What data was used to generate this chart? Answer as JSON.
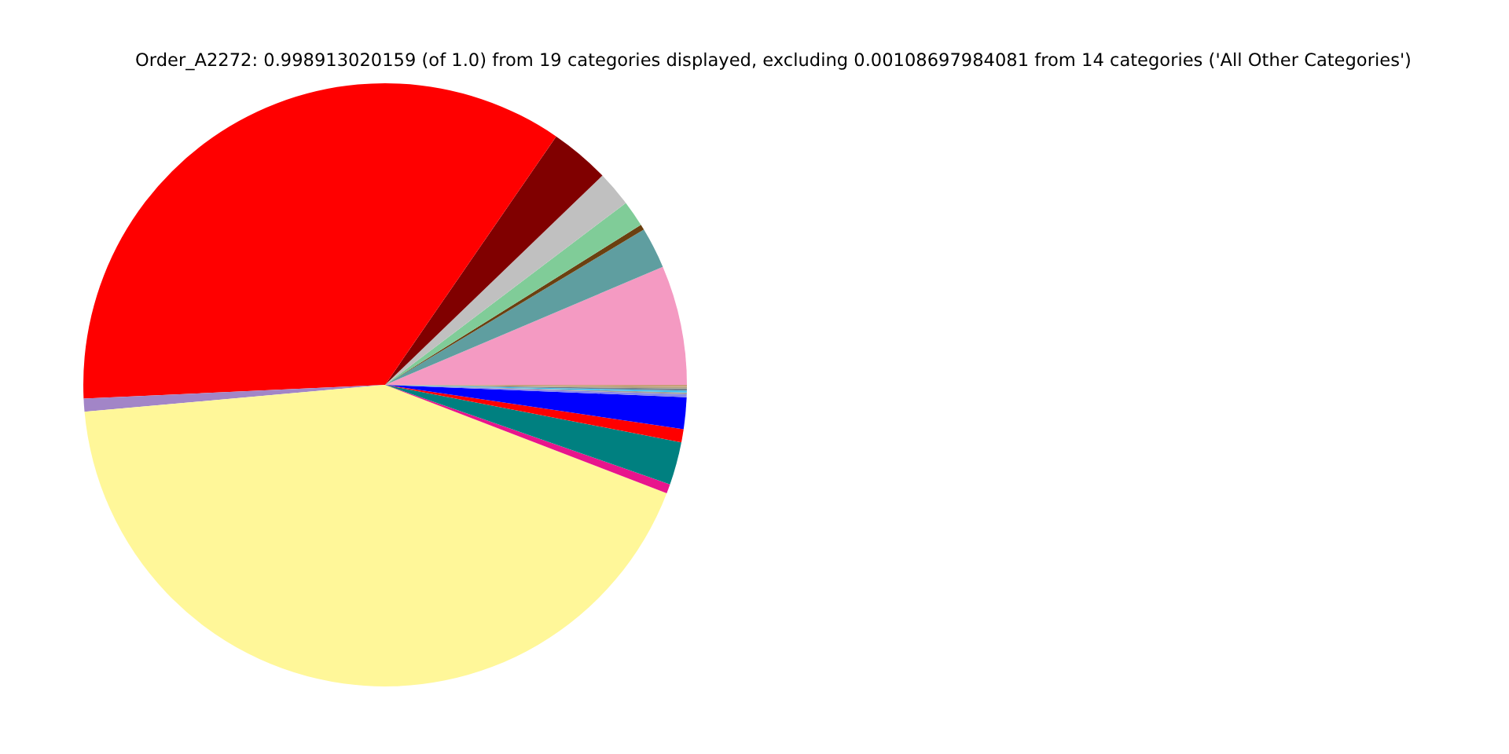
{
  "chart_data": {
    "type": "pie",
    "title": "Order_A2272: 0.998913020159 (of 1.0) from 19 categories displayed, excluding 0.00108697984081 from 14 categories ('All Other Categories')",
    "categories": [
      null,
      null,
      null,
      null,
      null,
      null,
      null,
      null,
      null,
      null,
      null,
      null,
      null,
      null,
      null,
      null,
      null,
      null,
      null
    ],
    "values": [
      6.4,
      2.2,
      0.3,
      1.4,
      1.9,
      3.2,
      35.3,
      0.7,
      42.7,
      0.5,
      2.3,
      0.7,
      1.7,
      0.15,
      0.1,
      0.1,
      0.1,
      0.1,
      0.1
    ],
    "colors": [
      "#f49ac2",
      "#5f9ea0",
      "#6b4010",
      "#80cc98",
      "#c0c0c0",
      "#800000",
      "#ff0000",
      "#a285c7",
      "#fff799",
      "#e8158c",
      "#008080",
      "#ff0000",
      "#0000ff",
      "#8a8ae6",
      "#a0a0a0",
      "#40c0f0",
      "#708090",
      "#b0a080",
      "#c8a078"
    ]
  }
}
